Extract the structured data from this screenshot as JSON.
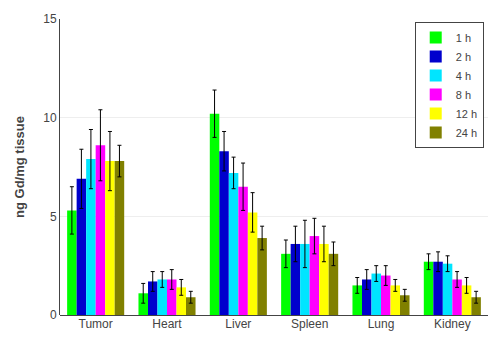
{
  "chart_data": {
    "type": "bar",
    "ylabel": "ng Gd/mg tissue",
    "categories": [
      "Tumor",
      "Heart",
      "Liver",
      "Spleen",
      "Lung",
      "Kidney"
    ],
    "series": [
      {
        "name": "1 h",
        "color": "#00ff00",
        "values": [
          5.3,
          1.1,
          10.2,
          3.1,
          1.5,
          2.7
        ],
        "errors": [
          1.2,
          0.5,
          1.2,
          0.7,
          0.4,
          0.4
        ]
      },
      {
        "name": "2 h",
        "color": "#0000cd",
        "values": [
          6.9,
          1.7,
          8.3,
          3.6,
          1.8,
          2.7
        ],
        "errors": [
          1.5,
          0.5,
          1.0,
          0.9,
          0.5,
          0.5
        ]
      },
      {
        "name": "4 h",
        "color": "#00e5ff",
        "values": [
          7.9,
          1.8,
          7.2,
          3.6,
          2.1,
          2.6
        ],
        "errors": [
          1.5,
          0.4,
          0.8,
          1.2,
          0.4,
          0.4
        ]
      },
      {
        "name": "8 h",
        "color": "#ff00ff",
        "values": [
          8.6,
          1.8,
          6.5,
          4.0,
          2.0,
          1.8
        ],
        "errors": [
          1.8,
          0.5,
          1.2,
          0.9,
          0.5,
          0.4
        ]
      },
      {
        "name": "12 h",
        "color": "#ffff00",
        "values": [
          7.8,
          1.4,
          5.2,
          3.6,
          1.5,
          1.5
        ],
        "errors": [
          1.5,
          0.4,
          1.0,
          0.9,
          0.3,
          0.4
        ]
      },
      {
        "name": "24 h",
        "color": "#808000",
        "values": [
          7.8,
          0.9,
          3.9,
          3.1,
          1.0,
          0.9
        ],
        "errors": [
          0.8,
          0.3,
          0.6,
          0.6,
          0.3,
          0.3
        ]
      }
    ],
    "ylim": [
      0,
      15
    ],
    "yticks": [
      0,
      5,
      10,
      15
    ],
    "grid": true,
    "legend": "upper right"
  }
}
